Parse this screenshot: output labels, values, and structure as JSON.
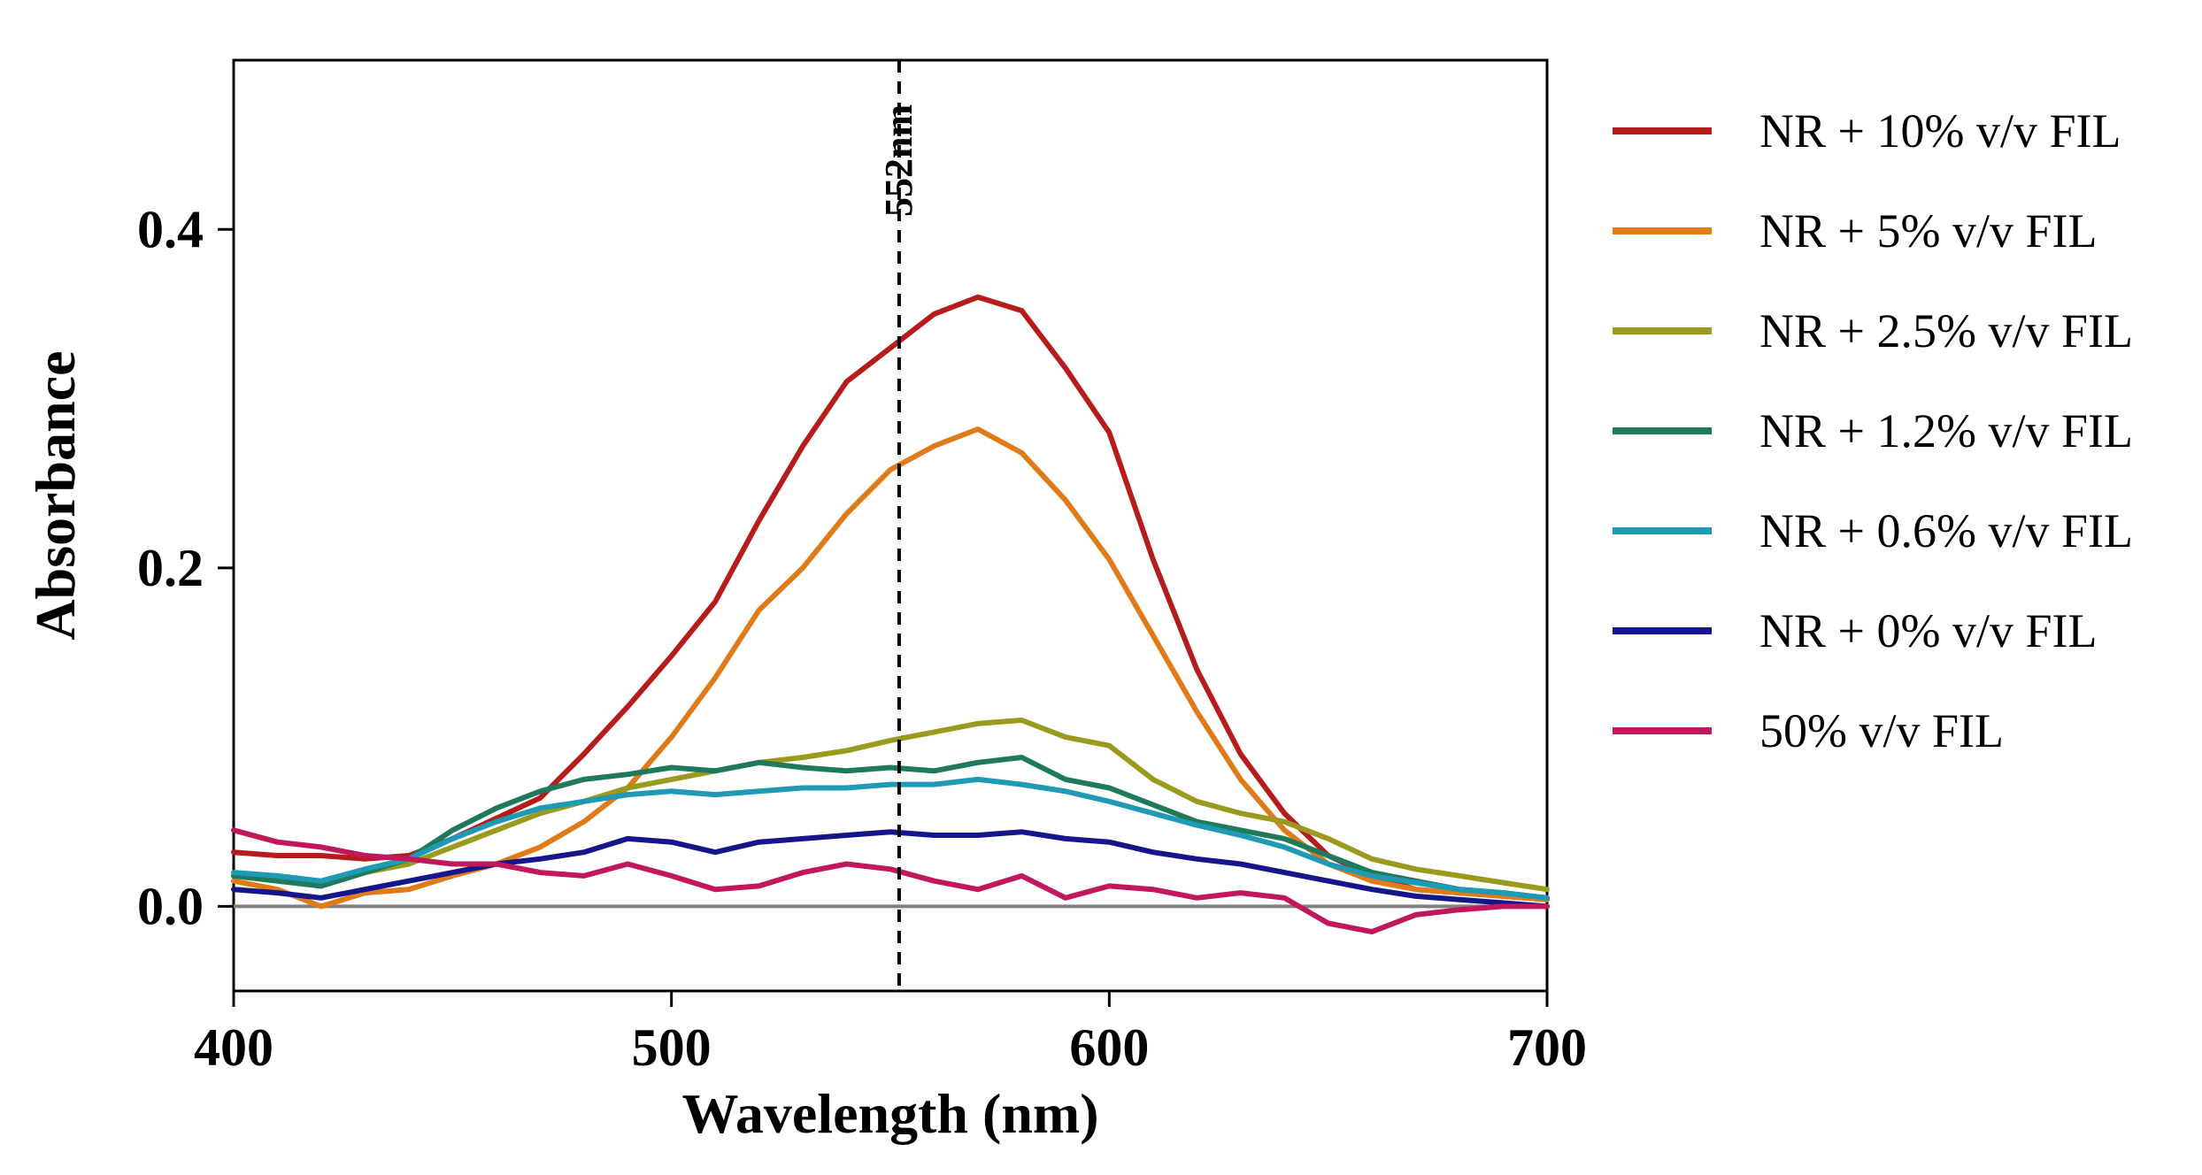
{
  "chart_data": {
    "type": "line",
    "title": "",
    "xlabel": "Wavelength (nm)",
    "ylabel": "Absorbance",
    "xlim": [
      400,
      700
    ],
    "ylim": [
      -0.05,
      0.5
    ],
    "xticks": [
      400,
      500,
      600,
      700
    ],
    "xtick_labels": [
      "400",
      "500",
      "600",
      "700"
    ],
    "yticks": [
      0.0,
      0.2,
      0.4
    ],
    "ytick_labels": [
      "0.0",
      "0.2",
      "0.4"
    ],
    "reference_line": {
      "x": 552,
      "label": "552nm"
    },
    "legend_position": "right",
    "series": [
      {
        "name": "NR + 10% v/v FIL",
        "color": "#b71c1c",
        "x": [
          400,
          410,
          420,
          430,
          440,
          450,
          460,
          470,
          480,
          490,
          500,
          510,
          520,
          530,
          540,
          550,
          560,
          570,
          580,
          590,
          600,
          610,
          620,
          630,
          640,
          650,
          660,
          670,
          680,
          690,
          700
        ],
        "y": [
          0.032,
          0.03,
          0.03,
          0.028,
          0.03,
          0.04,
          0.052,
          0.064,
          0.09,
          0.118,
          0.148,
          0.18,
          0.228,
          0.272,
          0.31,
          0.33,
          0.35,
          0.36,
          0.352,
          0.318,
          0.28,
          0.205,
          0.14,
          0.09,
          0.055,
          0.03,
          0.018,
          0.01,
          0.008,
          0.006,
          0.004
        ]
      },
      {
        "name": "NR + 5% v/v FIL",
        "color": "#e07b1a",
        "x": [
          400,
          410,
          420,
          430,
          440,
          450,
          460,
          470,
          480,
          490,
          500,
          510,
          520,
          530,
          540,
          550,
          560,
          570,
          580,
          590,
          600,
          610,
          620,
          630,
          640,
          650,
          660,
          670,
          680,
          690,
          700
        ],
        "y": [
          0.015,
          0.01,
          0.0,
          0.008,
          0.01,
          0.018,
          0.025,
          0.035,
          0.05,
          0.07,
          0.1,
          0.135,
          0.175,
          0.2,
          0.232,
          0.258,
          0.272,
          0.282,
          0.268,
          0.24,
          0.205,
          0.16,
          0.115,
          0.075,
          0.045,
          0.025,
          0.015,
          0.01,
          0.008,
          0.006,
          0.004
        ]
      },
      {
        "name": "NR + 2.5% v/v FIL",
        "color": "#9a9a1e",
        "x": [
          400,
          410,
          420,
          430,
          440,
          450,
          460,
          470,
          480,
          490,
          500,
          510,
          520,
          530,
          540,
          550,
          560,
          570,
          580,
          590,
          600,
          610,
          620,
          630,
          640,
          650,
          660,
          670,
          680,
          690,
          700
        ],
        "y": [
          0.018,
          0.015,
          0.012,
          0.02,
          0.025,
          0.035,
          0.045,
          0.055,
          0.062,
          0.07,
          0.075,
          0.08,
          0.085,
          0.088,
          0.092,
          0.098,
          0.103,
          0.108,
          0.11,
          0.1,
          0.095,
          0.075,
          0.062,
          0.055,
          0.05,
          0.04,
          0.028,
          0.022,
          0.018,
          0.014,
          0.01
        ]
      },
      {
        "name": "NR + 1.2% v/v FIL",
        "color": "#1f7a5c",
        "x": [
          400,
          410,
          420,
          430,
          440,
          450,
          460,
          470,
          480,
          490,
          500,
          510,
          520,
          530,
          540,
          550,
          560,
          570,
          580,
          590,
          600,
          610,
          620,
          630,
          640,
          650,
          660,
          670,
          680,
          690,
          700
        ],
        "y": [
          0.018,
          0.015,
          0.012,
          0.02,
          0.028,
          0.045,
          0.058,
          0.068,
          0.075,
          0.078,
          0.082,
          0.08,
          0.085,
          0.082,
          0.08,
          0.082,
          0.08,
          0.085,
          0.088,
          0.075,
          0.07,
          0.06,
          0.05,
          0.045,
          0.04,
          0.03,
          0.02,
          0.015,
          0.01,
          0.008,
          0.005
        ]
      },
      {
        "name": "NR + 0.6% v/v FIL",
        "color": "#1e9ab5",
        "x": [
          400,
          410,
          420,
          430,
          440,
          450,
          460,
          470,
          480,
          490,
          500,
          510,
          520,
          530,
          540,
          550,
          560,
          570,
          580,
          590,
          600,
          610,
          620,
          630,
          640,
          650,
          660,
          670,
          680,
          690,
          700
        ],
        "y": [
          0.02,
          0.018,
          0.015,
          0.022,
          0.028,
          0.04,
          0.05,
          0.058,
          0.062,
          0.066,
          0.068,
          0.066,
          0.068,
          0.07,
          0.07,
          0.072,
          0.072,
          0.075,
          0.072,
          0.068,
          0.062,
          0.055,
          0.048,
          0.042,
          0.035,
          0.025,
          0.018,
          0.014,
          0.01,
          0.008,
          0.005
        ]
      },
      {
        "name": "NR + 0% v/v FIL",
        "color": "#15158c",
        "x": [
          400,
          410,
          420,
          430,
          440,
          450,
          460,
          470,
          480,
          490,
          500,
          510,
          520,
          530,
          540,
          550,
          560,
          570,
          580,
          590,
          600,
          610,
          620,
          630,
          640,
          650,
          660,
          670,
          680,
          690,
          700
        ],
        "y": [
          0.01,
          0.008,
          0.005,
          0.01,
          0.015,
          0.02,
          0.025,
          0.028,
          0.032,
          0.04,
          0.038,
          0.032,
          0.038,
          0.04,
          0.042,
          0.044,
          0.042,
          0.042,
          0.044,
          0.04,
          0.038,
          0.032,
          0.028,
          0.025,
          0.02,
          0.015,
          0.01,
          0.006,
          0.004,
          0.002,
          0.0
        ]
      },
      {
        "name": "50% v/v FIL",
        "color": "#c2185b",
        "x": [
          400,
          410,
          420,
          430,
          440,
          450,
          460,
          470,
          480,
          490,
          500,
          510,
          520,
          530,
          540,
          550,
          560,
          570,
          580,
          590,
          600,
          610,
          620,
          630,
          640,
          650,
          660,
          670,
          680,
          690,
          700
        ],
        "y": [
          0.045,
          0.038,
          0.035,
          0.03,
          0.028,
          0.025,
          0.025,
          0.02,
          0.018,
          0.025,
          0.018,
          0.01,
          0.012,
          0.02,
          0.025,
          0.022,
          0.015,
          0.01,
          0.018,
          0.005,
          0.012,
          0.01,
          0.005,
          0.008,
          0.005,
          -0.01,
          -0.015,
          -0.005,
          -0.002,
          0.0,
          0.0
        ]
      }
    ]
  }
}
